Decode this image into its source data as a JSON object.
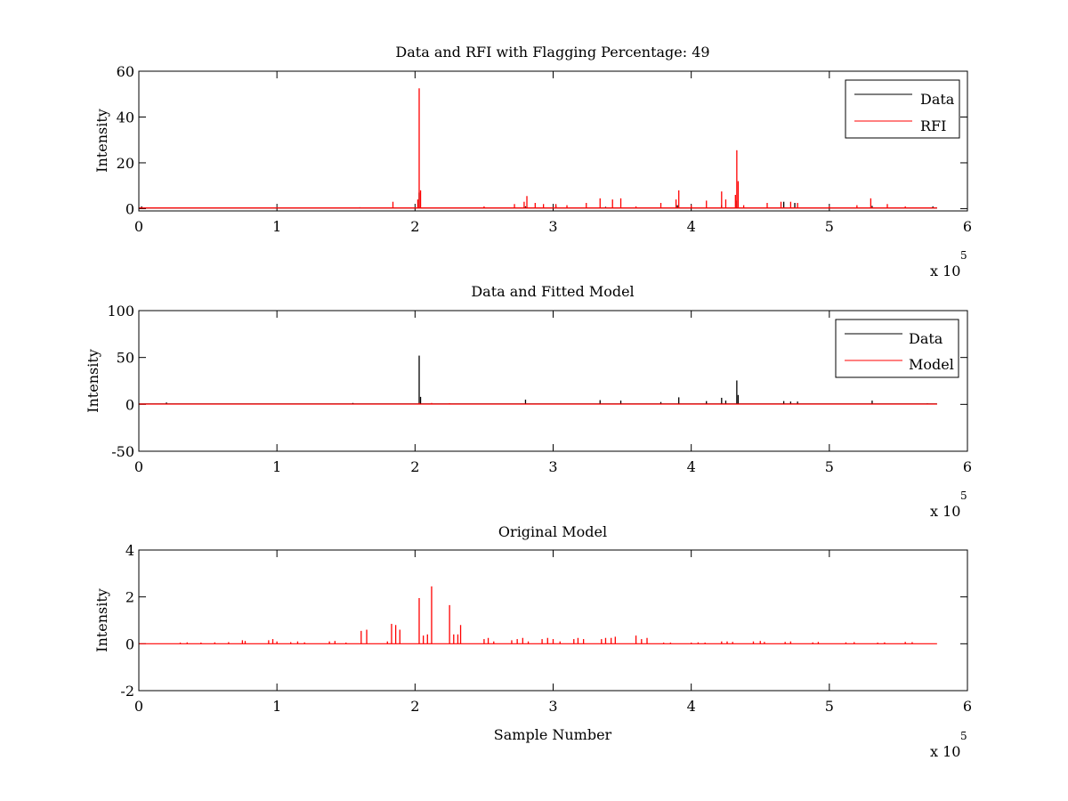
{
  "chart_data": [
    {
      "type": "line",
      "title": "Data and RFI with Flagging Percentage: 49",
      "xlabel": "",
      "ylabel": "Intensity",
      "xlim": [
        0,
        6
      ],
      "ylim": [
        -1,
        60
      ],
      "xticks": [
        "0",
        "1",
        "2",
        "3",
        "4",
        "5",
        "6"
      ],
      "yticks": [
        {
          "v": 0,
          "label": "0"
        },
        {
          "v": 20,
          "label": "20"
        },
        {
          "v": 40,
          "label": "40"
        },
        {
          "v": 60,
          "label": "60"
        }
      ],
      "x_multiplier": {
        "base": "x 10",
        "exponent": "5"
      },
      "legend": {
        "position": "top-right",
        "entries": [
          {
            "name": "Data",
            "color": "#000000"
          },
          {
            "name": "RFI",
            "color": "#ff0000"
          }
        ]
      },
      "series": [
        {
          "name": "Data",
          "color": "#000000",
          "baseline": 0.3,
          "xmax": 5.78,
          "points": [
            [
              0.02,
              1.0
            ],
            [
              1.6,
              0.6
            ],
            [
              2.03,
              7.0
            ],
            [
              2.8,
              1.0
            ],
            [
              3.02,
              1.2
            ],
            [
              3.38,
              0.8
            ],
            [
              3.9,
              1.5
            ],
            [
              4.22,
              1.5
            ],
            [
              4.33,
              3.5
            ],
            [
              4.67,
              3.0
            ],
            [
              4.75,
              2.5
            ],
            [
              5.31,
              1.2
            ],
            [
              5.75,
              1.0
            ]
          ]
        },
        {
          "name": "RFI",
          "color": "#ff0000",
          "baseline": 0.3,
          "xmax": 5.78,
          "points": [
            [
              1.84,
              3.0
            ],
            [
              2.02,
              4.0
            ],
            [
              2.03,
              52.5
            ],
            [
              2.04,
              8.0
            ],
            [
              2.5,
              1.0
            ],
            [
              2.72,
              2.0
            ],
            [
              2.79,
              3.0
            ],
            [
              2.81,
              5.5
            ],
            [
              2.87,
              2.5
            ],
            [
              2.93,
              2.0
            ],
            [
              3.02,
              2.0
            ],
            [
              3.1,
              1.5
            ],
            [
              3.24,
              2.5
            ],
            [
              3.34,
              4.5
            ],
            [
              3.43,
              4.0
            ],
            [
              3.49,
              4.5
            ],
            [
              3.6,
              1.0
            ],
            [
              3.78,
              2.5
            ],
            [
              3.89,
              4.0
            ],
            [
              3.91,
              8.0
            ],
            [
              4.0,
              1.5
            ],
            [
              4.11,
              3.5
            ],
            [
              4.22,
              7.5
            ],
            [
              4.25,
              4.0
            ],
            [
              4.32,
              6.0
            ],
            [
              4.33,
              25.5
            ],
            [
              4.34,
              12.0
            ],
            [
              4.38,
              1.5
            ],
            [
              4.55,
              2.5
            ],
            [
              4.65,
              3.0
            ],
            [
              4.72,
              3.0
            ],
            [
              4.77,
              2.5
            ],
            [
              5.0,
              1.0
            ],
            [
              5.2,
              1.5
            ],
            [
              5.3,
              4.5
            ],
            [
              5.42,
              2.0
            ],
            [
              5.55,
              1.0
            ]
          ]
        }
      ]
    },
    {
      "type": "line",
      "title": "Data and Fitted Model",
      "xlabel": "",
      "ylabel": "Intensity",
      "xlim": [
        0,
        6
      ],
      "ylim": [
        -50,
        100
      ],
      "xticks": [
        "0",
        "1",
        "2",
        "3",
        "4",
        "5",
        "6"
      ],
      "yticks": [
        {
          "v": -50,
          "label": "-50"
        },
        {
          "v": 0,
          "label": "0"
        },
        {
          "v": 50,
          "label": "50"
        },
        {
          "v": 100,
          "label": "100"
        }
      ],
      "x_multiplier": {
        "base": "x 10",
        "exponent": "5"
      },
      "legend": {
        "position": "top-right",
        "entries": [
          {
            "name": "Data",
            "color": "#000000"
          },
          {
            "name": "Model",
            "color": "#ff0000"
          }
        ]
      },
      "series": [
        {
          "name": "Data",
          "color": "#000000",
          "baseline": 0.4,
          "xmax": 5.78,
          "points": [
            [
              0.2,
              2.0
            ],
            [
              1.55,
              1.5
            ],
            [
              2.03,
              52.0
            ],
            [
              2.04,
              8.0
            ],
            [
              2.8,
              5.0
            ],
            [
              3.34,
              4.5
            ],
            [
              3.49,
              4.0
            ],
            [
              3.78,
              2.5
            ],
            [
              3.91,
              7.5
            ],
            [
              4.11,
              3.5
            ],
            [
              4.22,
              7.0
            ],
            [
              4.25,
              4.0
            ],
            [
              4.33,
              25.5
            ],
            [
              4.34,
              10.0
            ],
            [
              4.67,
              3.5
            ],
            [
              4.72,
              3.0
            ],
            [
              4.77,
              3.0
            ],
            [
              5.31,
              4.0
            ],
            [
              5.71,
              1.0
            ]
          ]
        },
        {
          "name": "Model",
          "color": "#ff0000",
          "baseline": 0.3,
          "xmax": 5.78,
          "points": [
            [
              2.03,
              1.5
            ],
            [
              2.12,
              1.5
            ],
            [
              2.25,
              1.2
            ]
          ]
        }
      ]
    },
    {
      "type": "line",
      "title": "Original Model",
      "xlabel": "Sample Number",
      "ylabel": "Intensity",
      "xlim": [
        0,
        6
      ],
      "ylim": [
        -2,
        4
      ],
      "xticks": [
        "0",
        "1",
        "2",
        "3",
        "4",
        "5",
        "6"
      ],
      "yticks": [
        {
          "v": -2,
          "label": "-2"
        },
        {
          "v": 0,
          "label": "0"
        },
        {
          "v": 2,
          "label": "2"
        },
        {
          "v": 4,
          "label": "4"
        }
      ],
      "x_multiplier": {
        "base": "x 10",
        "exponent": "5"
      },
      "series": [
        {
          "color": "#ff0000",
          "baseline": 0,
          "xmax": 5.78,
          "points": [
            [
              0.3,
              0.05
            ],
            [
              0.35,
              0.06
            ],
            [
              0.45,
              0.05
            ],
            [
              0.55,
              0.06
            ],
            [
              0.65,
              0.07
            ],
            [
              0.75,
              0.15
            ],
            [
              0.77,
              0.12
            ],
            [
              0.94,
              0.15
            ],
            [
              0.97,
              0.2
            ],
            [
              1.0,
              0.1
            ],
            [
              1.1,
              0.07
            ],
            [
              1.15,
              0.1
            ],
            [
              1.2,
              0.06
            ],
            [
              1.38,
              0.1
            ],
            [
              1.42,
              0.12
            ],
            [
              1.5,
              0.05
            ],
            [
              1.61,
              0.55
            ],
            [
              1.65,
              0.6
            ],
            [
              1.8,
              0.1
            ],
            [
              1.83,
              0.85
            ],
            [
              1.86,
              0.8
            ],
            [
              1.89,
              0.6
            ],
            [
              2.03,
              1.95
            ],
            [
              2.06,
              0.35
            ],
            [
              2.09,
              0.4
            ],
            [
              2.12,
              2.45
            ],
            [
              2.25,
              1.65
            ],
            [
              2.28,
              0.4
            ],
            [
              2.31,
              0.4
            ],
            [
              2.33,
              0.8
            ],
            [
              2.5,
              0.2
            ],
            [
              2.53,
              0.25
            ],
            [
              2.57,
              0.1
            ],
            [
              2.7,
              0.15
            ],
            [
              2.74,
              0.2
            ],
            [
              2.78,
              0.25
            ],
            [
              2.82,
              0.1
            ],
            [
              2.92,
              0.2
            ],
            [
              2.96,
              0.25
            ],
            [
              3.0,
              0.2
            ],
            [
              3.05,
              0.1
            ],
            [
              3.15,
              0.2
            ],
            [
              3.18,
              0.25
            ],
            [
              3.22,
              0.2
            ],
            [
              3.35,
              0.2
            ],
            [
              3.38,
              0.25
            ],
            [
              3.42,
              0.25
            ],
            [
              3.45,
              0.3
            ],
            [
              3.6,
              0.35
            ],
            [
              3.64,
              0.2
            ],
            [
              3.68,
              0.25
            ],
            [
              3.8,
              0.05
            ],
            [
              3.85,
              0.05
            ],
            [
              4.0,
              0.05
            ],
            [
              4.05,
              0.06
            ],
            [
              4.1,
              0.05
            ],
            [
              4.22,
              0.1
            ],
            [
              4.26,
              0.1
            ],
            [
              4.3,
              0.08
            ],
            [
              4.45,
              0.1
            ],
            [
              4.5,
              0.12
            ],
            [
              4.53,
              0.08
            ],
            [
              4.68,
              0.08
            ],
            [
              4.72,
              0.1
            ],
            [
              4.88,
              0.06
            ],
            [
              4.92,
              0.08
            ],
            [
              5.12,
              0.06
            ],
            [
              5.18,
              0.07
            ],
            [
              5.35,
              0.05
            ],
            [
              5.4,
              0.06
            ],
            [
              5.55,
              0.08
            ],
            [
              5.6,
              0.07
            ]
          ]
        }
      ]
    }
  ]
}
